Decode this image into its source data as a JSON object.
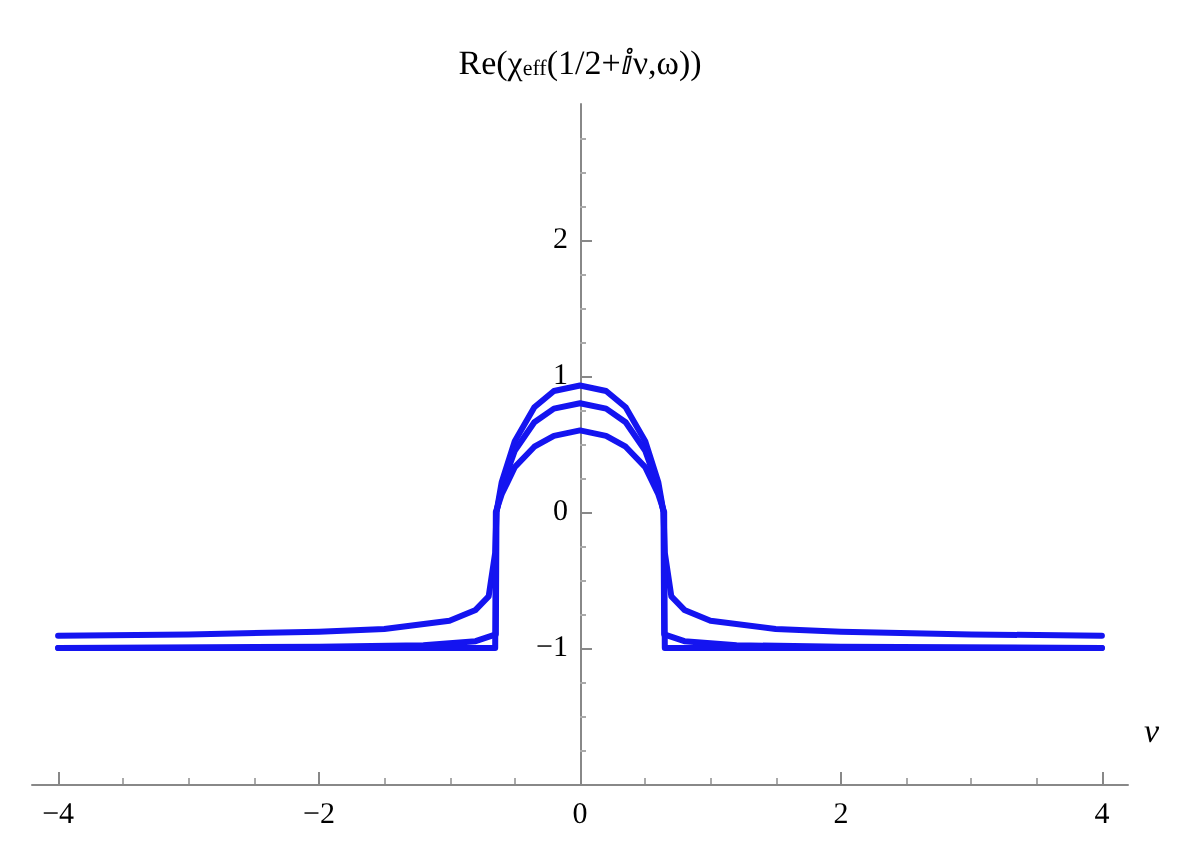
{
  "chart_data": {
    "type": "line",
    "ylabel": "Re(χ$_{eff}$(1/2+ⅈν,ω))",
    "xlabel": "ν",
    "xlim": [
      -4.2,
      4.2
    ],
    "ylim": [
      -2,
      3
    ],
    "xticks": [
      {
        "value": -4,
        "label": "−4"
      },
      {
        "value": -2,
        "label": "−2"
      },
      0,
      2,
      4
    ],
    "yticks": [
      {
        "value": -1,
        "label": "−1"
      },
      0,
      1,
      2
    ],
    "grid": false,
    "marker": "none",
    "line_style": "solid",
    "series": [
      {
        "color": "#1414f0",
        "x": [
          -4,
          -3,
          -2,
          -1.5,
          -1,
          -0.8,
          -0.7,
          -0.65,
          -0.64,
          -0.6,
          -0.5,
          -0.35,
          -0.2,
          0,
          0.2,
          0.35,
          0.5,
          0.6,
          0.64,
          0.65,
          0.7,
          0.8,
          1,
          1.5,
          2,
          3,
          4
        ],
        "values": [
          -0.91,
          -0.9,
          -0.88,
          -0.86,
          -0.8,
          -0.72,
          -0.62,
          -0.3,
          0.0,
          0.22,
          0.52,
          0.77,
          0.89,
          0.93,
          0.89,
          0.77,
          0.52,
          0.22,
          0.0,
          -0.3,
          -0.62,
          -0.72,
          -0.8,
          -0.86,
          -0.88,
          -0.9,
          -0.91
        ]
      },
      {
        "color": "#1414f0",
        "x": [
          -4,
          -2,
          -1.2,
          -0.8,
          -0.645,
          -0.64,
          -0.6,
          -0.5,
          -0.35,
          -0.2,
          0,
          0.2,
          0.35,
          0.5,
          0.6,
          0.64,
          0.645,
          0.8,
          1.2,
          2,
          4
        ],
        "values": [
          -1.0,
          -0.99,
          -0.98,
          -0.95,
          -0.9,
          0.0,
          0.18,
          0.45,
          0.66,
          0.76,
          0.8,
          0.76,
          0.66,
          0.45,
          0.18,
          0.0,
          -0.9,
          -0.95,
          -0.98,
          -0.99,
          -1.0
        ]
      },
      {
        "color": "#1414f0",
        "x": [
          -4,
          -0.65,
          -0.645,
          -0.6,
          -0.5,
          -0.35,
          -0.2,
          0,
          0.2,
          0.35,
          0.5,
          0.6,
          0.645,
          0.65,
          4
        ],
        "values": [
          -1.0,
          -1.0,
          0.0,
          0.13,
          0.33,
          0.48,
          0.56,
          0.6,
          0.56,
          0.48,
          0.33,
          0.13,
          0.0,
          -1.0,
          -1.0
        ]
      }
    ]
  }
}
